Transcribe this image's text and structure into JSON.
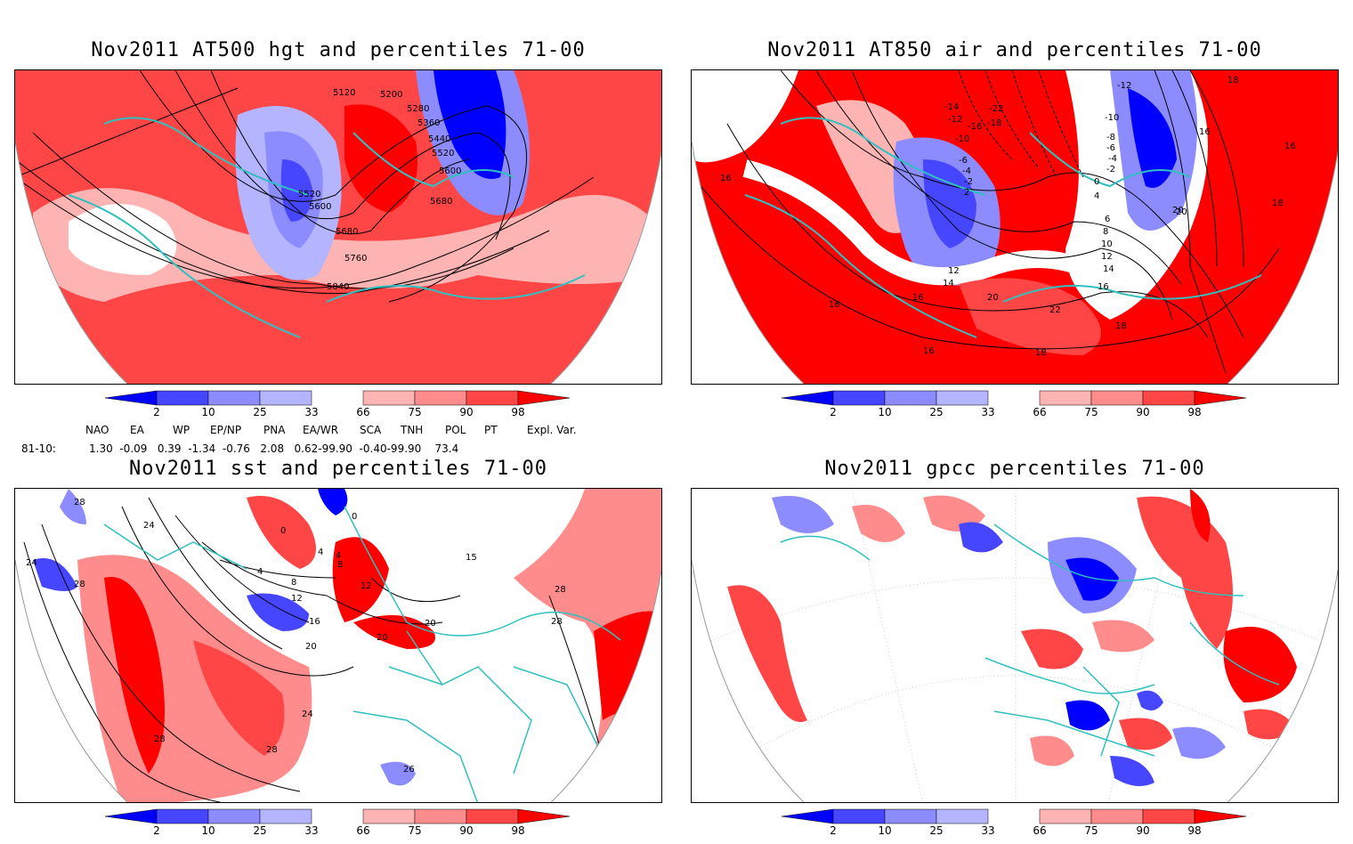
{
  "colors": {
    "blue_dark": "#0000ff",
    "blue_mid": "#4646ff",
    "blue_light": "#8c8cff",
    "blue_pale": "#b4b4ff",
    "red_pale": "#ffb4b4",
    "red_light": "#ff8c8c",
    "red_mid": "#ff4646",
    "red_dark": "#ff0000",
    "coast": "#30c0c0"
  },
  "panels": {
    "hgt": {
      "title": "Nov2011 AT500 hgt and percentiles 71-00",
      "contour_labels": [
        "5120",
        "5200",
        "5280",
        "5360",
        "5440",
        "5520",
        "5600",
        "5680",
        "5520",
        "5600",
        "5680",
        "5760",
        "5840"
      ]
    },
    "air": {
      "title": "Nov2011 AT850 air and percentiles 71-00",
      "contour_labels": [
        "-12",
        "-14",
        "-12",
        "-22",
        "-16",
        "-18",
        "-10",
        "-6",
        "-4",
        "-2",
        "2",
        "-10",
        "-8",
        "-6",
        "-4",
        "-2",
        "0",
        "4",
        "6",
        "8",
        "10",
        "12",
        "14",
        "16",
        "18",
        "20",
        "22",
        "20",
        "18",
        "16",
        "18",
        "16",
        "16",
        "16",
        "12",
        "14",
        "16",
        "18",
        "20",
        "16"
      ]
    },
    "sst": {
      "title": "Nov2011 sst and percentiles 71-00",
      "contour_labels": [
        "28",
        "24",
        "24",
        "28",
        "0",
        "0",
        "4",
        "4",
        "4",
        "8",
        "8",
        "12",
        "12",
        "16",
        "20",
        "20",
        "20",
        "24",
        "28",
        "28",
        "26",
        "15",
        "28",
        "28"
      ]
    },
    "gpcc": {
      "title": "Nov2011 gpcc percentiles 71-00"
    }
  },
  "colorbar": {
    "ticks": [
      "2",
      "10",
      "25",
      "33",
      "66",
      "75",
      "90",
      "98"
    ]
  },
  "teleconnections": {
    "headers": [
      "NAO",
      "EA",
      "WP",
      "EP/NP",
      "PNA",
      "EA/WR",
      "SCA",
      "TNH",
      "POL",
      "PT",
      "Expl. Var."
    ],
    "row_label": "81-10:",
    "row_text": "1.30  -0.09   0.39  -1.34  -0.76   2.08   0.62-99.90  -0.40-99.90    73.4"
  }
}
